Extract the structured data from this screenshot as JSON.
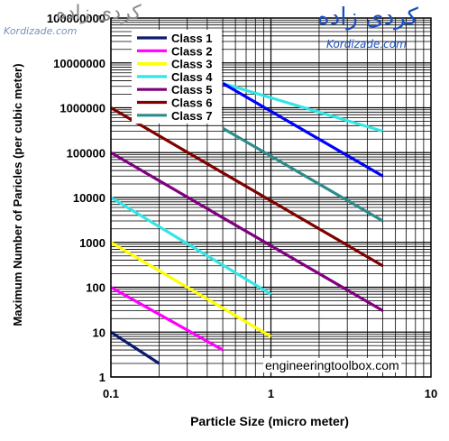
{
  "watermarks": {
    "left_logo_text": "کردی زاده",
    "left_url": "Kordizade.com",
    "right_logo_text": "کردی زاده",
    "right_url": "Kordizade.com"
  },
  "credit": "engineeringtoolbox.com",
  "chart_data": {
    "type": "line",
    "title": "",
    "xlabel": "Particle Size (micro meter)",
    "ylabel": "Maximum Number of Paricles (per cubic meter)",
    "xscale": "log",
    "yscale": "log",
    "xlim": [
      0.1,
      10
    ],
    "ylim": [
      1,
      100000000
    ],
    "x_ticks": [
      "0.1",
      "1",
      "10"
    ],
    "y_ticks": [
      "1",
      "10",
      "100",
      "1000",
      "10000",
      "100000",
      "1000000",
      "10000000",
      "100000000"
    ],
    "grid": true,
    "legend_position": "top-left",
    "series": [
      {
        "name": "Class 1",
        "color": "#0a1a6e",
        "points": [
          [
            0.1,
            10
          ],
          [
            0.2,
            2
          ]
        ]
      },
      {
        "name": "Class 2",
        "color": "#ff00ff",
        "points": [
          [
            0.1,
            100
          ],
          [
            0.5,
            4
          ]
        ]
      },
      {
        "name": "Class 3",
        "color": "#ffff00",
        "points": [
          [
            0.1,
            1000
          ],
          [
            1,
            8
          ]
        ]
      },
      {
        "name": "Class 4",
        "color": "#33e6e6",
        "points": [
          [
            0.1,
            10000
          ],
          [
            1,
            70
          ],
          [
            0.5,
            3500000
          ],
          [
            5,
            300000
          ]
        ]
      },
      {
        "name": "Class 5",
        "color": "#800080",
        "points": [
          [
            0.1,
            100000
          ],
          [
            5,
            30
          ]
        ]
      },
      {
        "name": "Class 6",
        "color": "#800000",
        "points": [
          [
            0.1,
            1000000
          ],
          [
            5,
            300
          ]
        ]
      },
      {
        "name": "Class 7",
        "color": "#2e8b8b",
        "points": [
          [
            0.5,
            350000
          ],
          [
            5,
            3000
          ]
        ]
      },
      {
        "name": "",
        "color": "#0000ff",
        "points": [
          [
            0.5,
            3500000
          ],
          [
            5,
            30000
          ]
        ]
      }
    ],
    "legend_count": 7
  }
}
